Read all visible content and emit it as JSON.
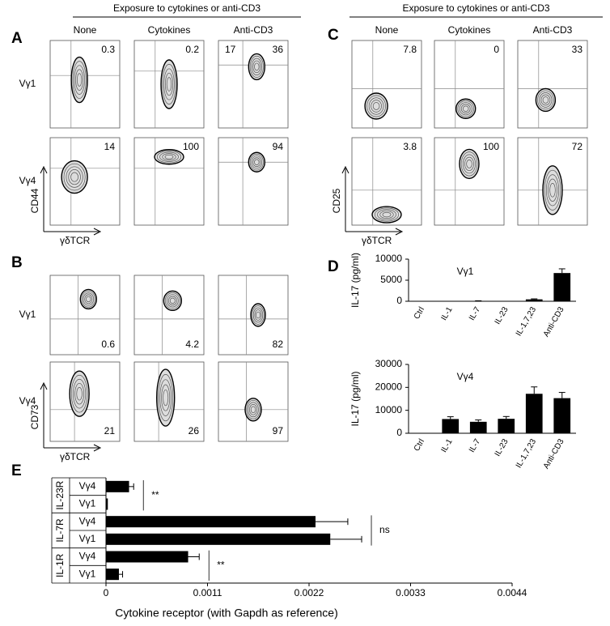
{
  "panel_labels": [
    "A",
    "B",
    "C",
    "D",
    "E"
  ],
  "flow_panels": [
    {
      "header": "Exposure to cytokines or anti-CD3",
      "columns": [
        "None",
        "Cytokines",
        "Anti-CD3"
      ],
      "rows": [
        "Vγ1",
        "Vγ4"
      ],
      "y_axis": "CD44",
      "x_axis": "γδTCR",
      "numbers": [
        [
          [
            0.3
          ],
          [
            0.2
          ],
          [
            17,
            36
          ]
        ],
        [
          [
            14
          ],
          [
            100
          ],
          [
            94
          ]
        ]
      ]
    },
    {
      "rows": [
        "Vγ1",
        "Vγ4"
      ],
      "y_axis": "CD73",
      "x_axis": "γδTCR",
      "numbers": [
        [
          [
            0.6
          ],
          [
            4.2
          ],
          [
            82
          ]
        ],
        [
          [
            21
          ],
          [
            26
          ],
          [
            97
          ]
        ]
      ]
    },
    {
      "header": "Exposure to cytokines or anti-CD3",
      "columns": [
        "None",
        "Cytokines",
        "Anti-CD3"
      ],
      "rows": [],
      "y_axis": "CD25",
      "x_axis": "γδTCR",
      "numbers": [
        [
          [
            7.8
          ],
          [
            0
          ],
          [
            33
          ]
        ],
        [
          [
            3.8
          ],
          [
            100
          ],
          [
            72
          ]
        ]
      ]
    }
  ],
  "chart_data": [
    {
      "type": "bar",
      "title": "Vγ1",
      "y_label": "IL-17 (pg/ml)",
      "categories": [
        "Ctrl",
        "IL-1",
        "IL-7",
        "IL-23",
        "IL-1,7,23",
        "Anti-CD3"
      ],
      "values": [
        0,
        20,
        80,
        10,
        450,
        6700
      ],
      "errors": [
        0,
        0,
        40,
        0,
        120,
        1000
      ],
      "ylim": [
        0,
        10000
      ],
      "yticks": [
        0,
        5000,
        10000
      ],
      "color": "#000000"
    },
    {
      "type": "bar",
      "title": "Vγ4",
      "y_label": "IL-17 (pg/ml)",
      "categories": [
        "Ctrl",
        "IL-1",
        "IL-7",
        "IL-23",
        "IL-1,7,23",
        "Anti-CD3"
      ],
      "values": [
        100,
        6200,
        5000,
        6300,
        17200,
        15300
      ],
      "errors": [
        0,
        1000,
        800,
        1000,
        3000,
        2500
      ],
      "ylim": [
        0,
        30000
      ],
      "yticks": [
        0,
        10000,
        20000,
        30000
      ],
      "color": "#000000"
    },
    {
      "type": "barh",
      "x_label": "Cytokine receptor (with Gapdh as reference)",
      "groups": [
        "IL-23R",
        "IL-7R",
        "IL-1R"
      ],
      "categories": [
        "Vγ4",
        "Vγ1",
        "Vγ4",
        "Vγ1",
        "Vγ4",
        "Vγ1"
      ],
      "values": [
        0.00025,
        2e-05,
        0.00227,
        0.00243,
        0.00089,
        0.00014
      ],
      "errors": [
        5e-05,
        0,
        0.00035,
        0.00034,
        0.00012,
        4e-05
      ],
      "xlim": [
        0,
        0.0044
      ],
      "xticks": [
        0,
        0.0011,
        0.0022,
        0.0033,
        0.0044
      ],
      "annotations": [
        "**",
        "ns",
        "**"
      ],
      "color": "#000000"
    }
  ]
}
